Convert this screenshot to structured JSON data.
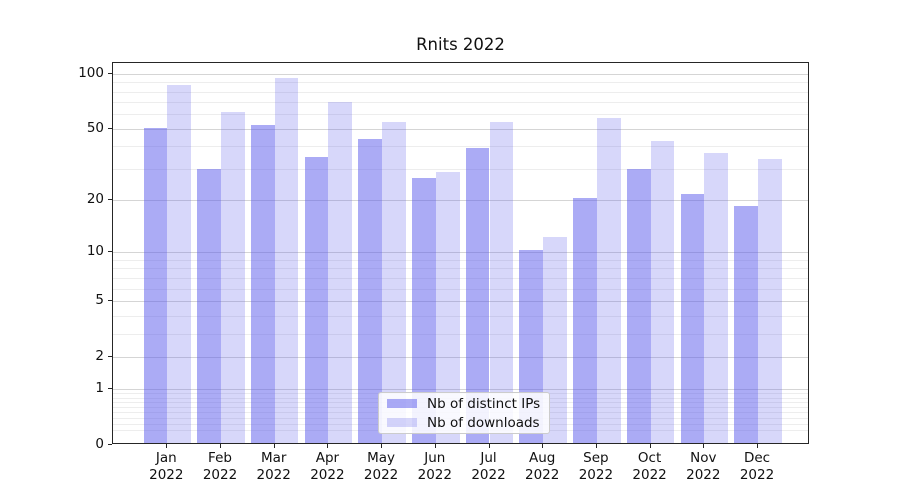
{
  "title": "Rnits 2022",
  "chart_data": {
    "type": "bar",
    "title": "Rnits 2022",
    "categories": [
      "Jan",
      "Feb",
      "Mar",
      "Apr",
      "May",
      "Jun",
      "Jul",
      "Aug",
      "Sep",
      "Oct",
      "Nov",
      "Dec"
    ],
    "category_year": "2022",
    "series": [
      {
        "name": "Nb of distinct IPs",
        "color": "rgba(88,88,235,0.5)",
        "values": [
          49,
          29,
          51,
          34,
          43,
          26,
          38,
          10,
          20,
          29,
          21,
          18
        ]
      },
      {
        "name": "Nb of downloads",
        "color": "rgba(88,88,235,0.24)",
        "values": [
          85,
          60,
          93,
          68,
          53,
          28,
          53,
          12,
          56,
          42,
          36,
          33
        ]
      }
    ],
    "xlabel": "",
    "ylabel": "",
    "yscale": "log1p",
    "ylim": [
      0,
      114
    ],
    "y_major_ticks": [
      100,
      50,
      20,
      10,
      5,
      2,
      1,
      0
    ],
    "y_minor_ticks": [
      0.2,
      0.3,
      0.4,
      0.5,
      0.6,
      0.7,
      0.8,
      0.9,
      3,
      4,
      6,
      7,
      8,
      9,
      30,
      40,
      60,
      70,
      80,
      90
    ],
    "grid": "both",
    "legend_position": "lower center"
  },
  "legend": {
    "items": [
      {
        "label": "Nb of distinct IPs",
        "color": "rgba(88,88,235,0.5)"
      },
      {
        "label": "Nb of downloads",
        "color": "rgba(88,88,235,0.24)"
      }
    ]
  },
  "colors": {
    "bar_dark_rendered": "#ababf5",
    "bar_light_rendered": "#d7d7fa",
    "grid_major": "#d5d5d5",
    "grid_minor": "#ededed",
    "spine": "#262626",
    "background": "#ffffff"
  }
}
